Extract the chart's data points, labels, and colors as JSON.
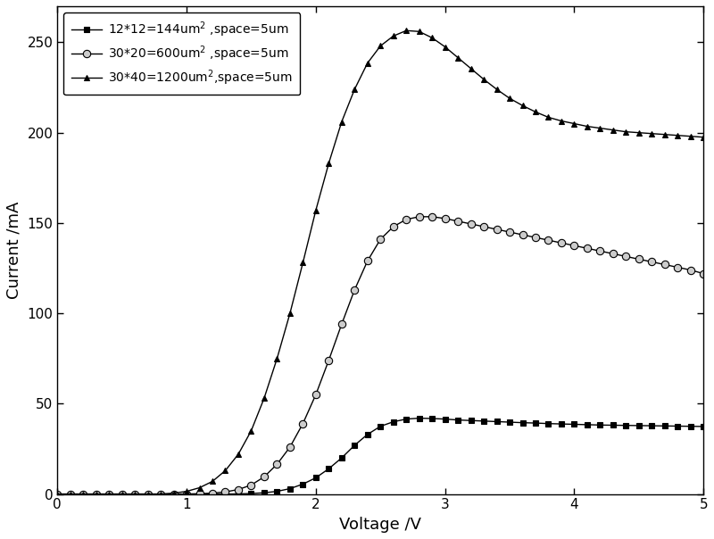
{
  "title": "",
  "xlabel": "Voltage /V",
  "ylabel": "Current /mA",
  "xlim": [
    0,
    5
  ],
  "ylim": [
    0,
    270
  ],
  "yticks": [
    0,
    50,
    100,
    150,
    200,
    250
  ],
  "xticks": [
    0,
    1,
    2,
    3,
    4,
    5
  ],
  "background_color": "#ffffff",
  "series1": {
    "label": "12*12=144um$^2$ ,space=5um",
    "marker": "s",
    "color": "black",
    "markerfacecolor": "black",
    "markersize": 4,
    "markevery": 1,
    "x": [
      0.0,
      0.1,
      0.2,
      0.3,
      0.4,
      0.5,
      0.6,
      0.7,
      0.8,
      0.9,
      1.0,
      1.1,
      1.2,
      1.3,
      1.4,
      1.5,
      1.6,
      1.7,
      1.8,
      1.9,
      2.0,
      2.1,
      2.2,
      2.3,
      2.4,
      2.5,
      2.6,
      2.7,
      2.8,
      2.9,
      3.0,
      3.1,
      3.2,
      3.3,
      3.4,
      3.5,
      3.6,
      3.7,
      3.8,
      3.9,
      4.0,
      4.1,
      4.2,
      4.3,
      4.4,
      4.5,
      4.6,
      4.7,
      4.8,
      4.9,
      5.0
    ],
    "y": [
      0.0,
      0.0,
      0.0,
      0.0,
      0.0,
      0.0,
      0.0,
      0.0,
      0.0,
      0.0,
      0.0,
      0.0,
      0.0,
      0.0,
      0.1,
      0.3,
      0.7,
      1.5,
      3.0,
      5.5,
      9.0,
      14.0,
      20.0,
      27.0,
      33.0,
      37.5,
      40.0,
      41.5,
      42.0,
      41.8,
      41.5,
      41.0,
      40.7,
      40.4,
      40.1,
      39.8,
      39.5,
      39.3,
      39.0,
      38.8,
      38.6,
      38.4,
      38.2,
      38.1,
      38.0,
      37.9,
      37.8,
      37.7,
      37.6,
      37.5,
      37.4
    ]
  },
  "series2": {
    "label": "30*20=600um$^2$ ,space=5um",
    "marker": "o",
    "color": "black",
    "markerfacecolor": "#cccccc",
    "markersize": 6,
    "markevery": 1,
    "x": [
      0.0,
      0.1,
      0.2,
      0.3,
      0.4,
      0.5,
      0.6,
      0.7,
      0.8,
      0.9,
      1.0,
      1.1,
      1.2,
      1.3,
      1.4,
      1.5,
      1.6,
      1.7,
      1.8,
      1.9,
      2.0,
      2.1,
      2.2,
      2.3,
      2.4,
      2.5,
      2.6,
      2.7,
      2.8,
      2.9,
      3.0,
      3.1,
      3.2,
      3.3,
      3.4,
      3.5,
      3.6,
      3.7,
      3.8,
      3.9,
      4.0,
      4.1,
      4.2,
      4.3,
      4.4,
      4.5,
      4.6,
      4.7,
      4.8,
      4.9,
      5.0
    ],
    "y": [
      0.0,
      0.0,
      0.0,
      0.0,
      0.0,
      0.0,
      0.0,
      0.0,
      0.0,
      0.0,
      0.0,
      0.2,
      0.5,
      1.2,
      2.5,
      5.0,
      9.5,
      16.5,
      26.0,
      39.0,
      55.0,
      74.0,
      94.0,
      113.0,
      129.0,
      141.0,
      148.0,
      152.0,
      153.5,
      153.5,
      152.5,
      151.0,
      149.5,
      148.0,
      146.5,
      145.0,
      143.5,
      142.0,
      140.5,
      139.0,
      137.5,
      136.0,
      134.5,
      133.0,
      131.5,
      130.0,
      128.5,
      127.0,
      125.5,
      124.0,
      122.0
    ]
  },
  "series3": {
    "label": "30*40=1200um$^2$,space=5um",
    "marker": "^",
    "color": "black",
    "markerfacecolor": "black",
    "markersize": 5,
    "markevery": 1,
    "x": [
      0.0,
      0.1,
      0.2,
      0.3,
      0.4,
      0.5,
      0.6,
      0.7,
      0.8,
      0.9,
      1.0,
      1.1,
      1.2,
      1.3,
      1.4,
      1.5,
      1.6,
      1.7,
      1.8,
      1.9,
      2.0,
      2.1,
      2.2,
      2.3,
      2.4,
      2.5,
      2.6,
      2.7,
      2.8,
      2.9,
      3.0,
      3.1,
      3.2,
      3.3,
      3.4,
      3.5,
      3.6,
      3.7,
      3.8,
      3.9,
      4.0,
      4.1,
      4.2,
      4.3,
      4.4,
      4.5,
      4.6,
      4.7,
      4.8,
      4.9,
      5.0
    ],
    "y": [
      0.0,
      0.0,
      0.0,
      0.0,
      0.0,
      0.0,
      0.0,
      0.0,
      0.0,
      0.5,
      1.5,
      3.5,
      7.0,
      13.0,
      22.0,
      35.0,
      53.0,
      75.0,
      100.0,
      128.0,
      157.0,
      183.0,
      206.0,
      224.0,
      238.5,
      248.0,
      253.5,
      256.5,
      256.0,
      252.5,
      247.5,
      241.5,
      235.5,
      229.5,
      224.0,
      219.0,
      215.0,
      211.5,
      208.5,
      206.5,
      205.0,
      203.5,
      202.5,
      201.5,
      200.5,
      200.0,
      199.5,
      199.0,
      198.5,
      198.0,
      197.5
    ]
  }
}
